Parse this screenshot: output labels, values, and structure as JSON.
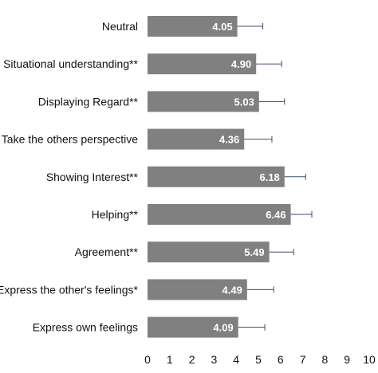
{
  "chart_data": {
    "type": "bar",
    "orientation": "horizontal",
    "categories": [
      "Neutral",
      "Situational understanding**",
      "Displaying Regard**",
      "Take the others perspective",
      "Showing Interest**",
      "Helping**",
      "Agreement**",
      "Express the other's feelings*",
      "Express own feelings"
    ],
    "values": [
      4.05,
      4.9,
      5.03,
      4.36,
      6.18,
      6.46,
      5.49,
      4.49,
      4.09
    ],
    "value_labels": [
      "4.05",
      "4.90",
      "5.03",
      "4.36",
      "6.18",
      "6.46",
      "5.49",
      "4.49",
      "4.09"
    ],
    "error": [
      1.15,
      1.15,
      1.15,
      1.25,
      0.95,
      0.95,
      1.1,
      1.2,
      1.2
    ],
    "xlim": [
      0,
      10
    ],
    "xticks": [
      "0",
      "1",
      "2",
      "3",
      "4",
      "5",
      "6",
      "7",
      "8",
      "9",
      "10"
    ],
    "grid": false,
    "colors": {
      "bar": "#808080",
      "error_bar": "#3c4a73",
      "value_label": "#ffffff"
    }
  }
}
